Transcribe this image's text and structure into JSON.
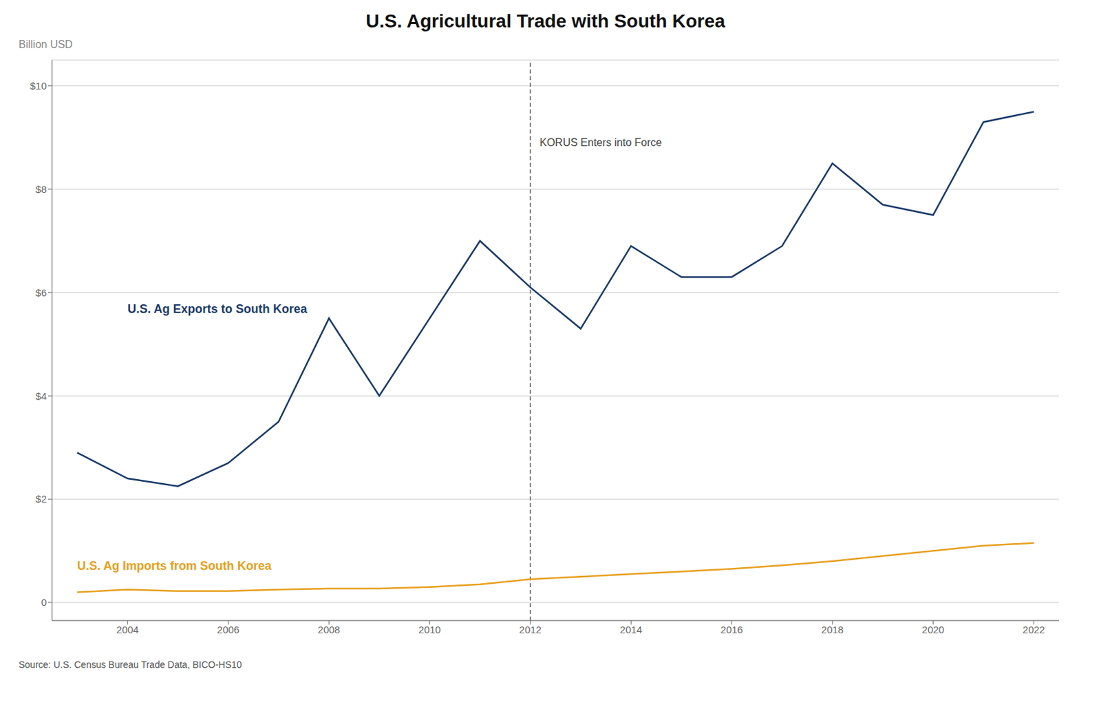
{
  "chart_data": {
    "type": "line",
    "title": "U.S. Agricultural Trade with South Korea",
    "y_label": "Billion USD",
    "source": "Source: U.S. Census Bureau Trade Data, BICO-HS10",
    "x": [
      2003,
      2004,
      2005,
      2006,
      2007,
      2008,
      2009,
      2010,
      2011,
      2012,
      2013,
      2014,
      2015,
      2016,
      2017,
      2018,
      2019,
      2020,
      2021,
      2022
    ],
    "series": [
      {
        "name": "U.S. Ag Exports to South Korea",
        "color": "#1a3a6b",
        "values": [
          2.9,
          2.4,
          2.25,
          2.7,
          3.5,
          5.5,
          4.0,
          5.5,
          7.0,
          6.1,
          5.3,
          6.9,
          6.3,
          6.3,
          6.9,
          8.5,
          7.7,
          7.5,
          9.3,
          9.5
        ],
        "label_position": {
          "x": 2004.0,
          "y": 5.55
        }
      },
      {
        "name": "U.S. Ag Imports from South Korea",
        "color": "#e8a020",
        "values": [
          0.2,
          0.25,
          0.22,
          0.22,
          0.25,
          0.27,
          0.27,
          0.3,
          0.35,
          0.45,
          0.5,
          0.55,
          0.6,
          0.65,
          0.72,
          0.8,
          0.9,
          1.0,
          1.1,
          1.15
        ],
        "label_position": {
          "x": 2003.0,
          "y": 0.58
        }
      }
    ],
    "xlim": [
      2002.5,
      2022.5
    ],
    "xticks": [
      2004,
      2006,
      2008,
      2010,
      2012,
      2014,
      2016,
      2018,
      2020,
      2022
    ],
    "ylim": [
      -0.35,
      10.5
    ],
    "yticks": [
      0,
      {
        "value": 2,
        "label": "$2"
      },
      {
        "value": 4,
        "label": "$4"
      },
      {
        "value": 6,
        "label": "$6"
      },
      {
        "value": 8,
        "label": "$8"
      },
      {
        "value": 10,
        "label": "$10"
      }
    ],
    "grid": true,
    "reference_lines": [
      {
        "x": 2012,
        "line_style": "dashed",
        "label": "KORUS Enters into Force",
        "label_y": 8.9
      }
    ]
  }
}
